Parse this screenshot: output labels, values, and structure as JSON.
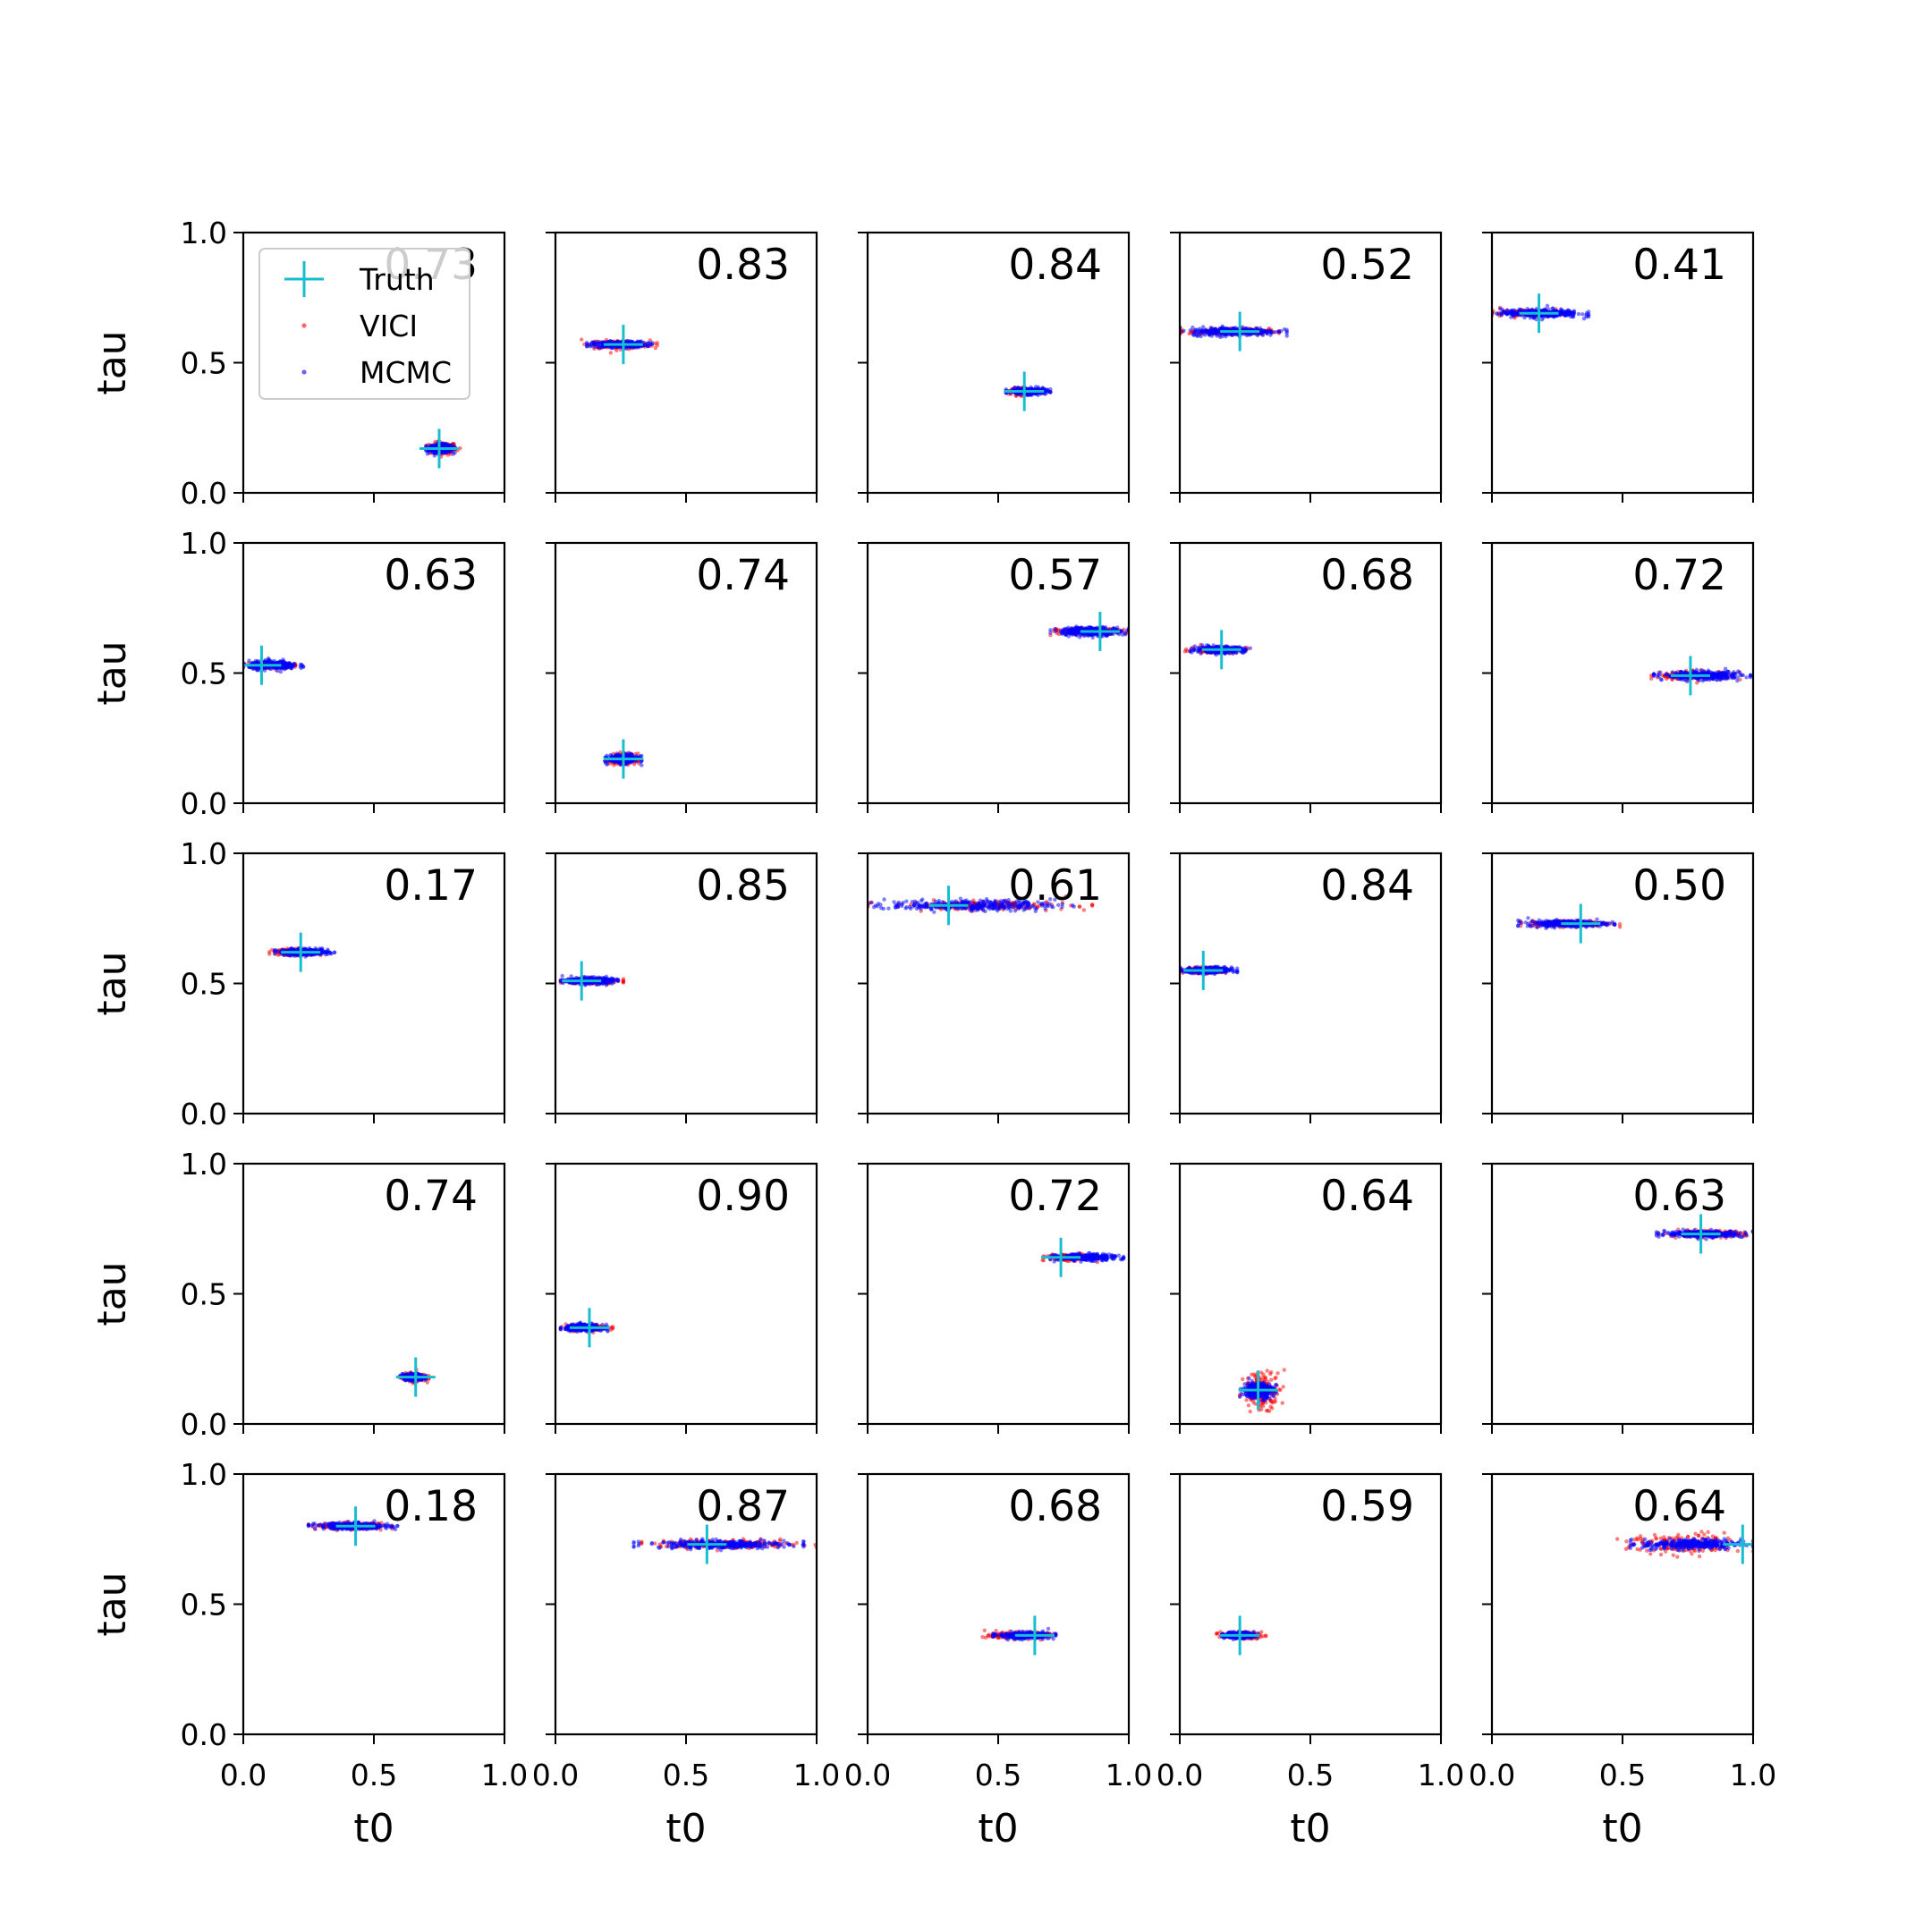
{
  "chart_data": {
    "type": "scatter",
    "layout": {
      "rows": 5,
      "cols": 5
    },
    "xlabel": "t0",
    "ylabel": "tau",
    "xlim": [
      0,
      1
    ],
    "ylim": [
      0,
      1
    ],
    "xticks": [
      "0.0",
      "0.5",
      "1.0"
    ],
    "yticks": [
      "0.0",
      "0.5",
      "1.0"
    ],
    "grid": false,
    "legend": {
      "placement": "upper-left of first panel",
      "entries": [
        {
          "name": "Truth",
          "marker": "plus",
          "color": "#17becf"
        },
        {
          "name": "VICI",
          "marker": "dot",
          "color": "#ff0000"
        },
        {
          "name": "MCMC",
          "marker": "dot",
          "color": "#0000ff"
        }
      ]
    },
    "colors": {
      "truth": "#17becf",
      "vici": "#ff0000",
      "mcmc": "#0000ff"
    },
    "panels": [
      {
        "overlap": "0.73",
        "truth": [
          0.75,
          0.17
        ],
        "vici": {
          "t0": [
            0.7,
            0.83
          ],
          "tau_spread": 0.012
        },
        "mcmc": {
          "t0": [
            0.7,
            0.81
          ],
          "tau_spread": 0.008
        }
      },
      {
        "overlap": "0.83",
        "truth": [
          0.26,
          0.57
        ],
        "vici": {
          "t0": [
            0.1,
            0.39
          ],
          "tau_spread": 0.008
        },
        "mcmc": {
          "t0": [
            0.12,
            0.37
          ],
          "tau_spread": 0.006
        }
      },
      {
        "overlap": "0.84",
        "truth": [
          0.6,
          0.39
        ],
        "vici": {
          "t0": [
            0.54,
            0.66
          ],
          "tau_spread": 0.006
        },
        "mcmc": {
          "t0": [
            0.53,
            0.7
          ],
          "tau_spread": 0.006
        }
      },
      {
        "overlap": "0.52",
        "truth": [
          0.23,
          0.62
        ],
        "vici": {
          "t0": [
            0.0,
            0.38
          ],
          "tau_spread": 0.006
        },
        "mcmc": {
          "t0": [
            0.0,
            0.41
          ],
          "tau_spread": 0.008
        }
      },
      {
        "overlap": "0.41",
        "truth": [
          0.18,
          0.69
        ],
        "vici": {
          "t0": [
            0.0,
            0.3
          ],
          "tau_spread": 0.006
        },
        "mcmc": {
          "t0": [
            0.0,
            0.37
          ],
          "tau_spread": 0.008
        }
      },
      {
        "overlap": "0.63",
        "truth": [
          0.07,
          0.53
        ],
        "vici": {
          "t0": [
            0.0,
            0.2
          ],
          "tau_spread": 0.006
        },
        "mcmc": {
          "t0": [
            0.0,
            0.23
          ],
          "tau_spread": 0.008
        }
      },
      {
        "overlap": "0.74",
        "truth": [
          0.26,
          0.17
        ],
        "vici": {
          "t0": [
            0.2,
            0.32
          ],
          "tau_spread": 0.01
        },
        "mcmc": {
          "t0": [
            0.19,
            0.33
          ],
          "tau_spread": 0.008
        }
      },
      {
        "overlap": "0.57",
        "truth": [
          0.89,
          0.66
        ],
        "vici": {
          "t0": [
            0.7,
            1.0
          ],
          "tau_spread": 0.006
        },
        "mcmc": {
          "t0": [
            0.7,
            1.0
          ],
          "tau_spread": 0.008
        }
      },
      {
        "overlap": "0.68",
        "truth": [
          0.16,
          0.59
        ],
        "vici": {
          "t0": [
            0.02,
            0.26
          ],
          "tau_spread": 0.006
        },
        "mcmc": {
          "t0": [
            0.04,
            0.27
          ],
          "tau_spread": 0.006
        }
      },
      {
        "overlap": "0.72",
        "truth": [
          0.76,
          0.49
        ],
        "vici": {
          "t0": [
            0.61,
            0.95
          ],
          "tau_spread": 0.008
        },
        "mcmc": {
          "t0": [
            0.62,
            0.99
          ],
          "tau_spread": 0.008
        }
      },
      {
        "overlap": "0.17",
        "truth": [
          0.22,
          0.62
        ],
        "vici": {
          "t0": [
            0.1,
            0.3
          ],
          "tau_spread": 0.006
        },
        "mcmc": {
          "t0": [
            0.12,
            0.35
          ],
          "tau_spread": 0.006
        }
      },
      {
        "overlap": "0.85",
        "truth": [
          0.1,
          0.51
        ],
        "vici": {
          "t0": [
            0.02,
            0.26
          ],
          "tau_spread": 0.006
        },
        "mcmc": {
          "t0": [
            0.02,
            0.24
          ],
          "tau_spread": 0.006
        }
      },
      {
        "overlap": "0.61",
        "truth": [
          0.31,
          0.8
        ],
        "vici": {
          "t0": [
            0.0,
            0.86
          ],
          "tau_spread": 0.008
        },
        "mcmc": {
          "t0": [
            0.0,
            0.79
          ],
          "tau_spread": 0.01
        }
      },
      {
        "overlap": "0.84",
        "truth": [
          0.09,
          0.55
        ],
        "vici": {
          "t0": [
            0.0,
            0.18
          ],
          "tau_spread": 0.006
        },
        "mcmc": {
          "t0": [
            0.0,
            0.22
          ],
          "tau_spread": 0.006
        }
      },
      {
        "overlap": "0.50",
        "truth": [
          0.34,
          0.73
        ],
        "vici": {
          "t0": [
            0.11,
            0.49
          ],
          "tau_spread": 0.006
        },
        "mcmc": {
          "t0": [
            0.1,
            0.47
          ],
          "tau_spread": 0.006
        }
      },
      {
        "overlap": "0.74",
        "truth": [
          0.66,
          0.18
        ],
        "vici": {
          "t0": [
            0.6,
            0.71
          ],
          "tau_spread": 0.008
        },
        "mcmc": {
          "t0": [
            0.6,
            0.7
          ],
          "tau_spread": 0.006
        }
      },
      {
        "overlap": "0.90",
        "truth": [
          0.13,
          0.37
        ],
        "vici": {
          "t0": [
            0.02,
            0.22
          ],
          "tau_spread": 0.006
        },
        "mcmc": {
          "t0": [
            0.02,
            0.2
          ],
          "tau_spread": 0.006
        }
      },
      {
        "overlap": "0.72",
        "truth": [
          0.74,
          0.64
        ],
        "vici": {
          "t0": [
            0.67,
            0.88
          ],
          "tau_spread": 0.006
        },
        "mcmc": {
          "t0": [
            0.7,
            0.98
          ],
          "tau_spread": 0.006
        }
      },
      {
        "overlap": "0.64",
        "truth": [
          0.3,
          0.13
        ],
        "vici": {
          "t0": [
            0.23,
            0.4
          ],
          "tau_spread": 0.035
        },
        "mcmc": {
          "t0": [
            0.23,
            0.37
          ],
          "tau_spread": 0.015
        }
      },
      {
        "overlap": "0.63",
        "truth": [
          0.8,
          0.73
        ],
        "vici": {
          "t0": [
            0.64,
            1.0
          ],
          "tau_spread": 0.006
        },
        "mcmc": {
          "t0": [
            0.63,
            1.0
          ],
          "tau_spread": 0.006
        }
      },
      {
        "overlap": "0.18",
        "truth": [
          0.43,
          0.8
        ],
        "vici": {
          "t0": [
            0.25,
            0.57
          ],
          "tau_spread": 0.006
        },
        "mcmc": {
          "t0": [
            0.25,
            0.59
          ],
          "tau_spread": 0.006
        }
      },
      {
        "overlap": "0.87",
        "truth": [
          0.58,
          0.73
        ],
        "vici": {
          "t0": [
            0.33,
            1.0
          ],
          "tau_spread": 0.008
        },
        "mcmc": {
          "t0": [
            0.3,
            0.95
          ],
          "tau_spread": 0.008
        }
      },
      {
        "overlap": "0.68",
        "truth": [
          0.64,
          0.38
        ],
        "vici": {
          "t0": [
            0.44,
            0.72
          ],
          "tau_spread": 0.006
        },
        "mcmc": {
          "t0": [
            0.48,
            0.72
          ],
          "tau_spread": 0.006
        }
      },
      {
        "overlap": "0.59",
        "truth": [
          0.23,
          0.38
        ],
        "vici": {
          "t0": [
            0.14,
            0.33
          ],
          "tau_spread": 0.006
        },
        "mcmc": {
          "t0": [
            0.16,
            0.3
          ],
          "tau_spread": 0.006
        }
      },
      {
        "overlap": "0.64",
        "truth": [
          0.96,
          0.73
        ],
        "vici": {
          "t0": [
            0.48,
            1.0
          ],
          "tau_spread": 0.02
        },
        "mcmc": {
          "t0": [
            0.53,
            1.0
          ],
          "tau_spread": 0.01
        }
      }
    ]
  }
}
